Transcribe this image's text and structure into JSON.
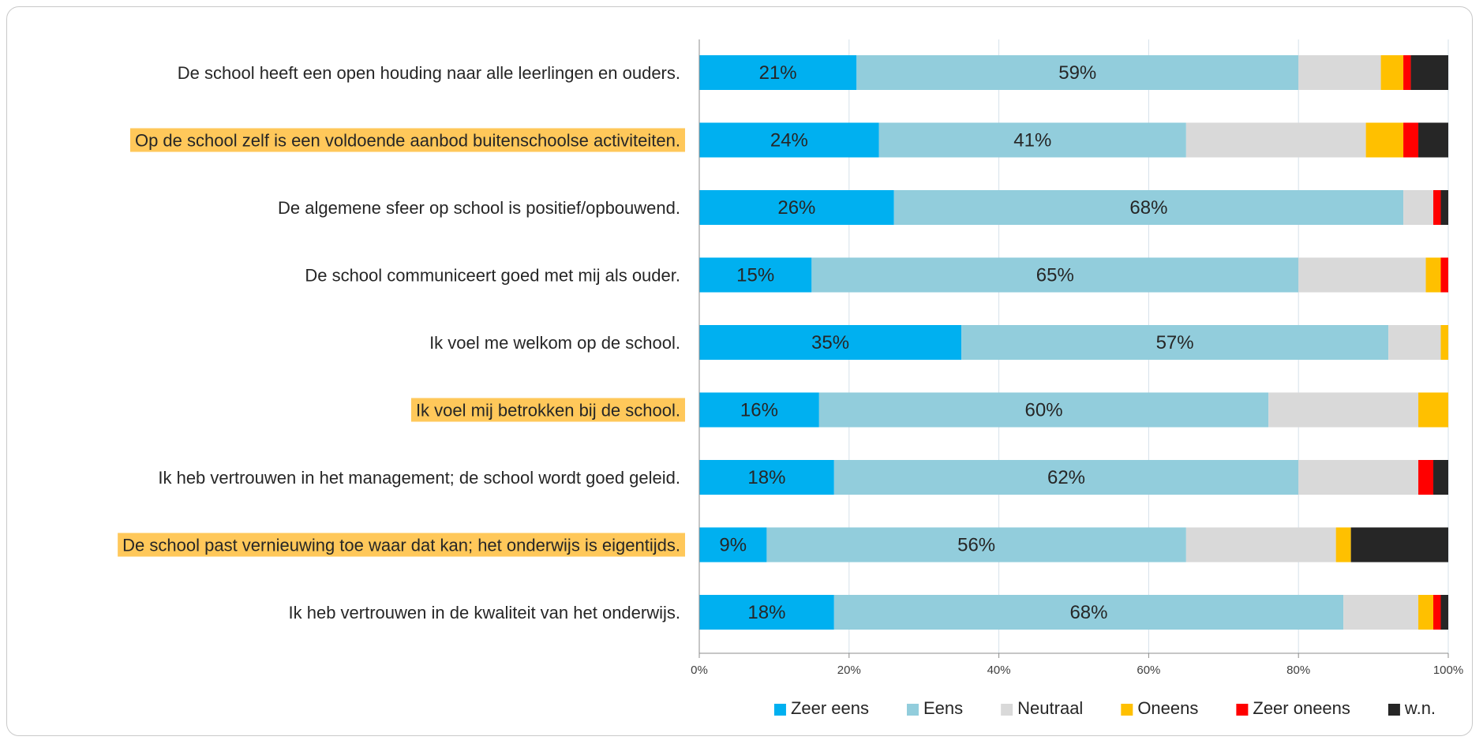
{
  "chart_data": {
    "type": "bar",
    "orientation": "horizontal",
    "stacked": true,
    "percent_stacked": true,
    "xlim": [
      0,
      100
    ],
    "x_ticks": [
      "0%",
      "20%",
      "40%",
      "60%",
      "80%",
      "100%"
    ],
    "grid": true,
    "legend_position": "bottom",
    "categories": [
      "De school heeft een open houding naar alle leerlingen en ouders.",
      "Op de school zelf is een voldoende aanbod buitenschoolse activiteiten.",
      "De algemene sfeer op school is positief/opbouwend.",
      "De school communiceert goed met mij als ouder.",
      "Ik voel me welkom op de school.",
      "Ik voel mij betrokken bij de school.",
      "Ik heb vertrouwen in het management; de school wordt goed geleid.",
      "De school past vernieuwing toe waar dat kan; het onderwijs is eigentijds.",
      "Ik heb vertrouwen in de kwaliteit van het onderwijs."
    ],
    "highlighted_categories": [
      1,
      5,
      7
    ],
    "highlight_color": "#ffc85a",
    "series": [
      {
        "name": "Zeer eens",
        "color": "#00b0f0",
        "values": [
          21,
          24,
          26,
          15,
          35,
          16,
          18,
          9,
          18
        ],
        "labels": [
          "21%",
          "24%",
          "26%",
          "15%",
          "35%",
          "16%",
          "18%",
          "9%",
          "18%"
        ]
      },
      {
        "name": "Eens",
        "color": "#92cddc",
        "values": [
          59,
          41,
          68,
          65,
          57,
          60,
          62,
          56,
          68
        ],
        "labels": [
          "59%",
          "41%",
          "68%",
          "65%",
          "57%",
          "60%",
          "62%",
          "56%",
          "68%"
        ]
      },
      {
        "name": "Neutraal",
        "color": "#d9d9d9",
        "values": [
          11,
          24,
          4,
          17,
          7,
          20,
          16,
          20,
          10
        ],
        "labels": [
          "",
          "",
          "",
          "",
          "",
          "",
          "",
          "",
          ""
        ]
      },
      {
        "name": "Oneens",
        "color": "#ffc000",
        "values": [
          3,
          5,
          0,
          2,
          1,
          4,
          0,
          2,
          2
        ],
        "labels": [
          "",
          "",
          "",
          "",
          "",
          "",
          "",
          "",
          ""
        ]
      },
      {
        "name": "Zeer oneens",
        "color": "#ff0000",
        "values": [
          1,
          2,
          1,
          1,
          0,
          0,
          2,
          0,
          1
        ],
        "labels": [
          "",
          "",
          "",
          "",
          "",
          "",
          "",
          "",
          ""
        ]
      },
      {
        "name": "w.n.",
        "color": "#262626",
        "values": [
          5,
          4,
          1,
          0,
          0,
          0,
          2,
          13,
          2
        ],
        "labels": [
          "",
          "",
          "",
          "",
          "",
          "",
          "",
          "",
          ""
        ]
      }
    ]
  }
}
